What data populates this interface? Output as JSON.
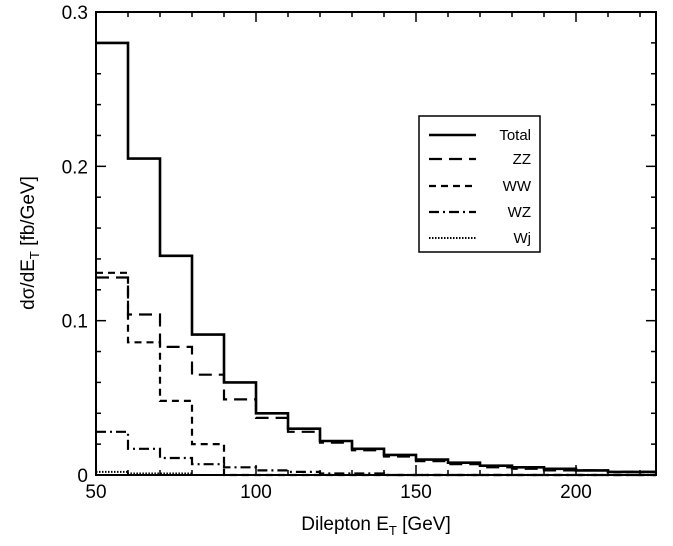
{
  "chart_data": {
    "type": "line",
    "style": "step histogram",
    "title": "",
    "xlabel": {
      "base": "Dilepton E",
      "sub": "T",
      "unit": " [GeV]"
    },
    "ylabel": {
      "base": "dσ/dE",
      "sub": "T",
      "unit": " [fb/GeV]"
    },
    "xlim": [
      50,
      225
    ],
    "ylim": [
      0,
      0.3
    ],
    "x_ticks": [
      "50",
      "100",
      "150",
      "200"
    ],
    "y_ticks": [
      "0",
      "0.1",
      "0.2",
      "0.3"
    ],
    "grid": false,
    "legend_position": "upper-right",
    "bin_edges": [
      50,
      60,
      70,
      80,
      90,
      100,
      110,
      120,
      130,
      140,
      150,
      160,
      170,
      180,
      190,
      200,
      210,
      220,
      225
    ],
    "series": [
      {
        "name": "Total",
        "dash": "solid",
        "width": 2.6,
        "values": [
          0.28,
          0.205,
          0.142,
          0.091,
          0.06,
          0.04,
          0.03,
          0.022,
          0.017,
          0.013,
          0.01,
          0.008,
          0.006,
          0.005,
          0.004,
          0.003,
          0.002,
          0.002
        ]
      },
      {
        "name": "ZZ",
        "dash": "long-dash",
        "width": 2.2,
        "values": [
          0.128,
          0.104,
          0.083,
          0.065,
          0.049,
          0.037,
          0.028,
          0.021,
          0.016,
          0.012,
          0.009,
          0.007,
          0.005,
          0.004,
          0.003,
          0.003,
          0.002,
          0.002
        ]
      },
      {
        "name": "WW",
        "dash": "short-dash",
        "width": 2.2,
        "values": [
          0.131,
          0.086,
          0.048,
          0.02,
          0.0,
          0.0,
          0.0,
          0.0,
          0.0,
          0.0,
          0.0,
          0.0,
          0.0,
          0.0,
          0.0,
          0.0,
          0.0,
          0.0
        ]
      },
      {
        "name": "WZ",
        "dash": "dash-dot",
        "width": 2.2,
        "values": [
          0.028,
          0.017,
          0.011,
          0.007,
          0.005,
          0.003,
          0.002,
          0.001,
          0.001,
          0.0,
          0.0,
          0.0,
          0.0,
          0.0,
          0.0,
          0.0,
          0.0,
          0.0
        ]
      },
      {
        "name": "Wj",
        "dash": "dotted",
        "width": 2.0,
        "values": [
          0.002,
          0.001,
          0.001,
          0.0,
          0.0,
          0.0,
          0.0,
          0.0,
          0.0,
          0.0,
          0.0,
          0.0,
          0.0,
          0.0,
          0.0,
          0.0,
          0.0,
          0.0
        ]
      }
    ]
  }
}
